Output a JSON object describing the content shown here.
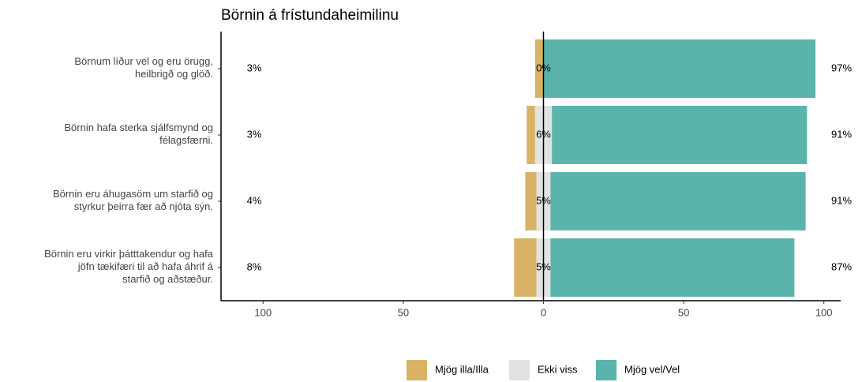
{
  "chart_data": {
    "type": "diverging_bar",
    "title": "Börnin á frístundaheimilinu",
    "categories": [
      "Börnum líður vel og eru örugg,\nheilbrigð og glöð.",
      "Börnin hafa sterka sjálfsmynd og\nfélagsfærni.",
      "Börnin eru áhugasöm um starfið og\nstyrkur þeirra fær að njóta sýn.",
      "Börnin eru virkir þátttakendur og hafa\njöfn tækifæri til að hafa áhrif á\nstarfið og aðstæður."
    ],
    "series": [
      {
        "name": "Mjög illa/Illa",
        "color": "#d9b365",
        "values": [
          3,
          3,
          4,
          8
        ],
        "value_labels": [
          "3%",
          "3%",
          "4%",
          "8%"
        ]
      },
      {
        "name": "Ekki viss",
        "color": "#e2e2e2",
        "values": [
          0,
          6,
          5,
          5
        ],
        "value_labels": [
          "0%",
          "6%",
          "5%",
          "5%"
        ]
      },
      {
        "name": "Mjög vel/Vel",
        "color": "#5ab4ac",
        "values": [
          97,
          91,
          91,
          87
        ],
        "value_labels": [
          "97%",
          "91%",
          "91%",
          "87%"
        ]
      }
    ],
    "xlim": [
      -115,
      106
    ],
    "xticks": [
      {
        "value": -100,
        "label": "100"
      },
      {
        "value": -50,
        "label": "50"
      },
      0,
      50,
      100
    ]
  }
}
